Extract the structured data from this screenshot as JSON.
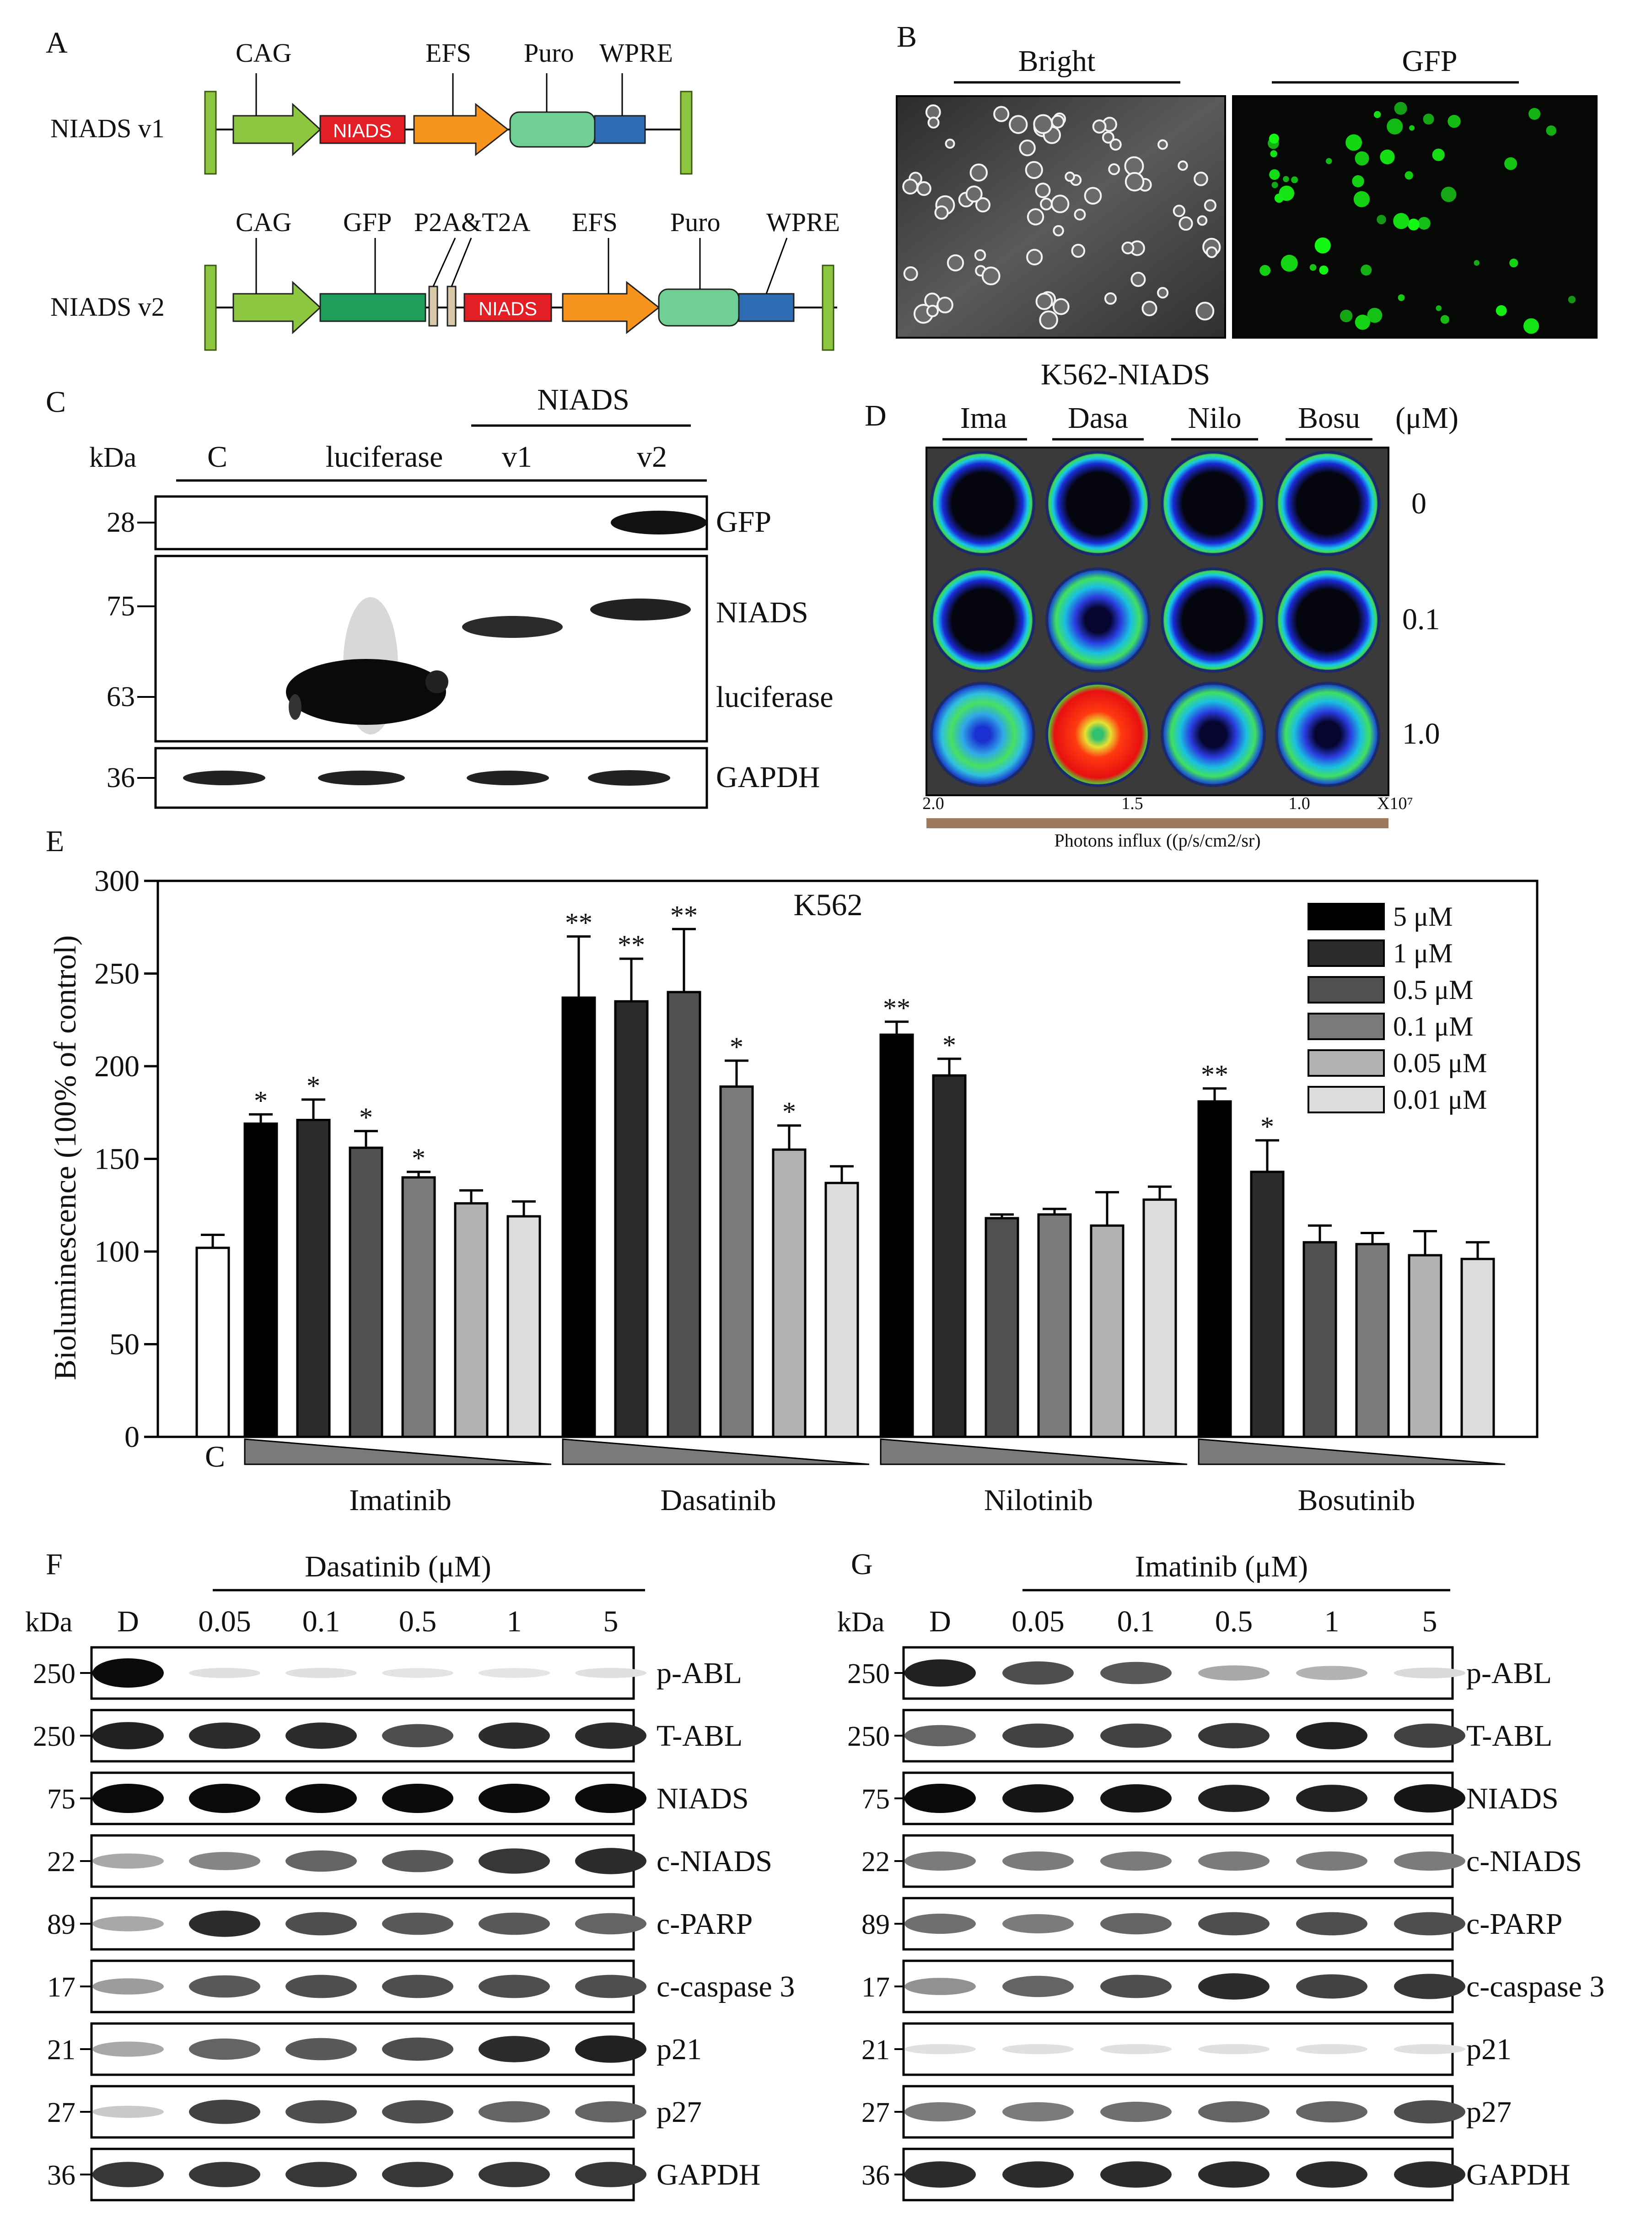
{
  "panels": {
    "A": "A",
    "B": "B",
    "C": "C",
    "D": "D",
    "E": "E",
    "F": "F",
    "G": "G"
  },
  "panelA": {
    "v1": {
      "name": "NIADS v1",
      "labels": [
        "CAG",
        "EFS",
        "Puro",
        "WPRE"
      ],
      "insert": "NIADS"
    },
    "v2": {
      "name": "NIADS v2",
      "labels": [
        "CAG",
        "GFP",
        "P2A&T2A",
        "EFS",
        "Puro",
        "WPRE"
      ],
      "insert": "NIADS"
    },
    "colors": {
      "cag": "#8DC63F",
      "niads": "#E31E24",
      "efs": "#F7941D",
      "puro": "#6FCF97",
      "wpre": "#2E6DB4",
      "gfp": "#1E9E5A",
      "ltr": "#8DC63F",
      "p2a": "#D8C8A8"
    }
  },
  "panelB": {
    "bright": "Bright",
    "gfp": "GFP"
  },
  "panelC": {
    "kda": "kDa",
    "lanes": [
      "C",
      "luciferase",
      "v1",
      "v2"
    ],
    "group": "NIADS",
    "markers": [
      "28",
      "75",
      "63",
      "36"
    ],
    "proteins": [
      "GFP",
      "NIADS",
      "luciferase",
      "GAPDH"
    ]
  },
  "panelD": {
    "title": "K562-NIADS",
    "drugs": [
      "Ima",
      "Dasa",
      "Nilo",
      "Bosu"
    ],
    "unit": "(μM)",
    "concs": [
      "0",
      "0.1",
      "1.0"
    ],
    "scale_ticks": [
      "2.0",
      "1.5",
      "1.0"
    ],
    "scale_exp": "X10⁷",
    "scale_label": "Photons influx ((p/s/cm2/sr)"
  },
  "chart_data": {
    "type": "bar",
    "title": "K562",
    "ylabel": "Bioluminescence (100% of control)",
    "ylim": [
      0,
      300
    ],
    "yticks": [
      "0",
      "50",
      "100",
      "150",
      "200",
      "250",
      "300"
    ],
    "control_label": "C",
    "control": {
      "value": 102,
      "error": 7
    },
    "groups": [
      "Imatinib",
      "Dasatinib",
      "Nilotinib",
      "Bosutinib"
    ],
    "legend": [
      "5 μM",
      "1 μM",
      "0.5 μM",
      "0.1 μM",
      "0.05 μM",
      "0.01 μM"
    ],
    "legend_colors": [
      "#000000",
      "#2b2b2b",
      "#505050",
      "#7a7a7a",
      "#b2b2b2",
      "#dcdcdc"
    ],
    "series": [
      {
        "name": "Imatinib",
        "values": [
          169,
          171,
          156,
          140,
          126,
          119
        ],
        "errors": [
          5,
          11,
          9,
          3,
          7,
          8
        ],
        "sig": [
          "*",
          "*",
          "*",
          "*",
          "",
          ""
        ]
      },
      {
        "name": "Dasatinib",
        "values": [
          237,
          235,
          240,
          189,
          155,
          137
        ],
        "errors": [
          33,
          23,
          34,
          14,
          13,
          9
        ],
        "sig": [
          "**",
          "**",
          "**",
          "*",
          "*",
          ""
        ]
      },
      {
        "name": "Nilotinib",
        "values": [
          217,
          195,
          118,
          120,
          114,
          128
        ],
        "errors": [
          7,
          9,
          2,
          3,
          18,
          7
        ],
        "sig": [
          "**",
          "*",
          "",
          "",
          "",
          ""
        ]
      },
      {
        "name": "Bosutinib",
        "values": [
          181,
          143,
          105,
          104,
          98,
          96
        ],
        "errors": [
          7,
          17,
          9,
          6,
          13,
          9
        ],
        "sig": [
          "**",
          "*",
          "",
          "",
          "",
          ""
        ]
      }
    ]
  },
  "panelF": {
    "kda": "kDa",
    "drug_title": "Dasatinib (μM)",
    "lanes": [
      "D",
      "0.05",
      "0.1",
      "0.5",
      "1",
      "5"
    ],
    "markers": [
      "250",
      "250",
      "75",
      "22",
      "89",
      "17",
      "21",
      "27",
      "36"
    ],
    "proteins": [
      "p-ABL",
      "T-ABL",
      "NIADS",
      "c-NIADS",
      "c-PARP",
      "c-caspase 3",
      "p21",
      "p27",
      "GAPDH"
    ]
  },
  "panelG": {
    "kda": "kDa",
    "drug_title": "Imatinib (μM)",
    "lanes": [
      "D",
      "0.05",
      "0.1",
      "0.5",
      "1",
      "5"
    ],
    "markers": [
      "250",
      "250",
      "75",
      "22",
      "89",
      "17",
      "21",
      "27",
      "36"
    ],
    "proteins": [
      "p-ABL",
      "T-ABL",
      "NIADS",
      "c-NIADS",
      "c-PARP",
      "c-caspase 3",
      "p21",
      "p27",
      "GAPDH"
    ]
  }
}
